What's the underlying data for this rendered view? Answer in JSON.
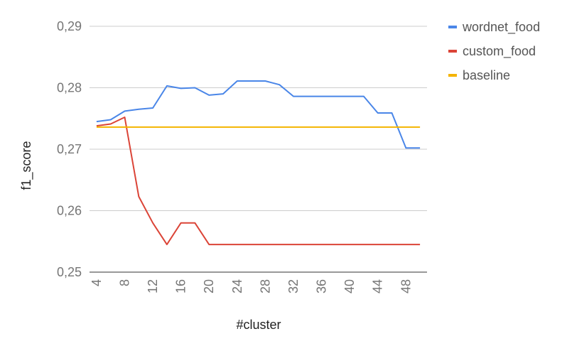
{
  "chart_data": {
    "type": "line",
    "xlabel": "#cluster",
    "ylabel": "f1_score",
    "x": [
      4,
      6,
      8,
      10,
      12,
      14,
      16,
      18,
      20,
      22,
      24,
      26,
      28,
      30,
      32,
      34,
      36,
      38,
      40,
      42,
      44,
      46,
      48,
      50
    ],
    "x_ticks": [
      "4",
      "8",
      "12",
      "16",
      "20",
      "24",
      "28",
      "32",
      "36",
      "40",
      "44",
      "48"
    ],
    "y_ticks": [
      "0,29",
      "0,28",
      "0,27",
      "0,26",
      "0,25"
    ],
    "ylim": [
      0.25,
      0.29
    ],
    "grid": true,
    "legend_position": "top-right",
    "series": [
      {
        "name": "wordnet_food",
        "color": "#4a86e8",
        "values": [
          0.2745,
          0.2748,
          0.2762,
          0.2765,
          0.2767,
          0.2803,
          0.2799,
          0.28,
          0.2788,
          0.279,
          0.2811,
          0.2811,
          0.2811,
          0.2805,
          0.2786,
          0.2786,
          0.2786,
          0.2786,
          0.2786,
          0.2786,
          0.2759,
          0.2759,
          0.2702,
          0.2702
        ]
      },
      {
        "name": "custom_food",
        "color": "#db4437",
        "values": [
          0.2738,
          0.2741,
          0.2752,
          0.2623,
          0.258,
          0.2545,
          0.258,
          0.258,
          0.2545,
          0.2545,
          0.2545,
          0.2545,
          0.2545,
          0.2545,
          0.2545,
          0.2545,
          0.2545,
          0.2545,
          0.2545,
          0.2545,
          0.2545,
          0.2545,
          0.2545,
          0.2545
        ]
      },
      {
        "name": "baseline",
        "color": "#f4b400",
        "values": [
          0.2736,
          0.2736,
          0.2736,
          0.2736,
          0.2736,
          0.2736,
          0.2736,
          0.2736,
          0.2736,
          0.2736,
          0.2736,
          0.2736,
          0.2736,
          0.2736,
          0.2736,
          0.2736,
          0.2736,
          0.2736,
          0.2736,
          0.2736,
          0.2736,
          0.2736,
          0.2736,
          0.2736
        ]
      }
    ]
  }
}
